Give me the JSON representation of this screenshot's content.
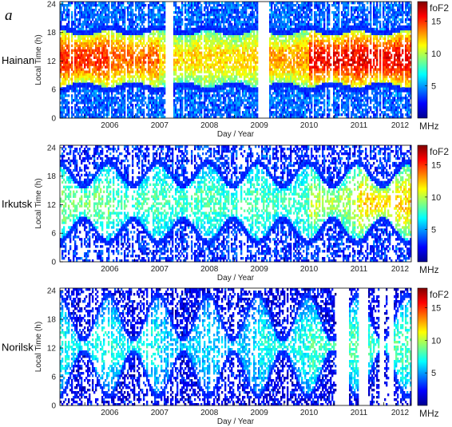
{
  "figure_letter": "a",
  "chart_data": [
    {
      "type": "heatmap",
      "station": "Hainan",
      "xlabel": "Day / Year",
      "ylabel": "Local Time (h)",
      "xlim": [
        2005.5,
        2012.55
      ],
      "ylim": [
        0,
        24.5
      ],
      "x_ticks": [
        "2006",
        "2007",
        "2008",
        "2009",
        "2010",
        "2011",
        "2012"
      ],
      "y_ticks": [
        0,
        6,
        12,
        18,
        24
      ],
      "colorbar": {
        "title": "foF2",
        "unit": "MHz",
        "ticks": [
          5,
          10,
          15
        ],
        "range": [
          0,
          18
        ]
      },
      "data_gaps": [
        [
          2007.63,
          2007.77
        ],
        [
          2009.47,
          2009.69
        ]
      ],
      "daytime_peak_MHz": [
        15,
        14,
        12,
        12,
        13,
        16,
        16
      ],
      "night_MHz": 4
    },
    {
      "type": "heatmap",
      "station": "Irkutsk",
      "xlabel": "Day / Year",
      "ylabel": "Local Time (h)",
      "xlim": [
        2005.5,
        2012.55
      ],
      "ylim": [
        0,
        24.5
      ],
      "x_ticks": [
        "2006",
        "2007",
        "2008",
        "2009",
        "2010",
        "2011",
        "2012"
      ],
      "y_ticks": [
        0,
        6,
        12,
        18,
        24
      ],
      "colorbar": {
        "title": "foF2",
        "unit": "MHz",
        "ticks": [
          5,
          10,
          15
        ],
        "range": [
          0,
          18
        ]
      },
      "data_gaps": [],
      "daytime_peak_MHz": [
        9,
        8,
        8,
        8,
        8,
        10,
        12
      ],
      "night_MHz": 3
    },
    {
      "type": "heatmap",
      "station": "Norilsk",
      "xlabel": "Day / Year",
      "ylabel": "Local Time (h)",
      "xlim": [
        2005.5,
        2012.55
      ],
      "ylim": [
        0,
        24.5
      ],
      "x_ticks": [
        "2006",
        "2007",
        "2008",
        "2009",
        "2010",
        "2011",
        "2012"
      ],
      "y_ticks": [
        0,
        6,
        12,
        18,
        24
      ],
      "colorbar": {
        "title": "foF2",
        "unit": "MHz",
        "ticks": [
          5,
          10,
          15
        ],
        "range": [
          0,
          18
        ]
      },
      "data_gaps": [
        [
          2011.05,
          2011.3
        ],
        [
          2011.5,
          2011.7
        ],
        [
          2011.9,
          2012.0
        ],
        [
          2012.1,
          2012.2
        ]
      ],
      "daytime_peak_MHz": [
        7,
        7,
        6,
        6,
        7,
        8,
        8
      ],
      "night_MHz": 2
    }
  ]
}
